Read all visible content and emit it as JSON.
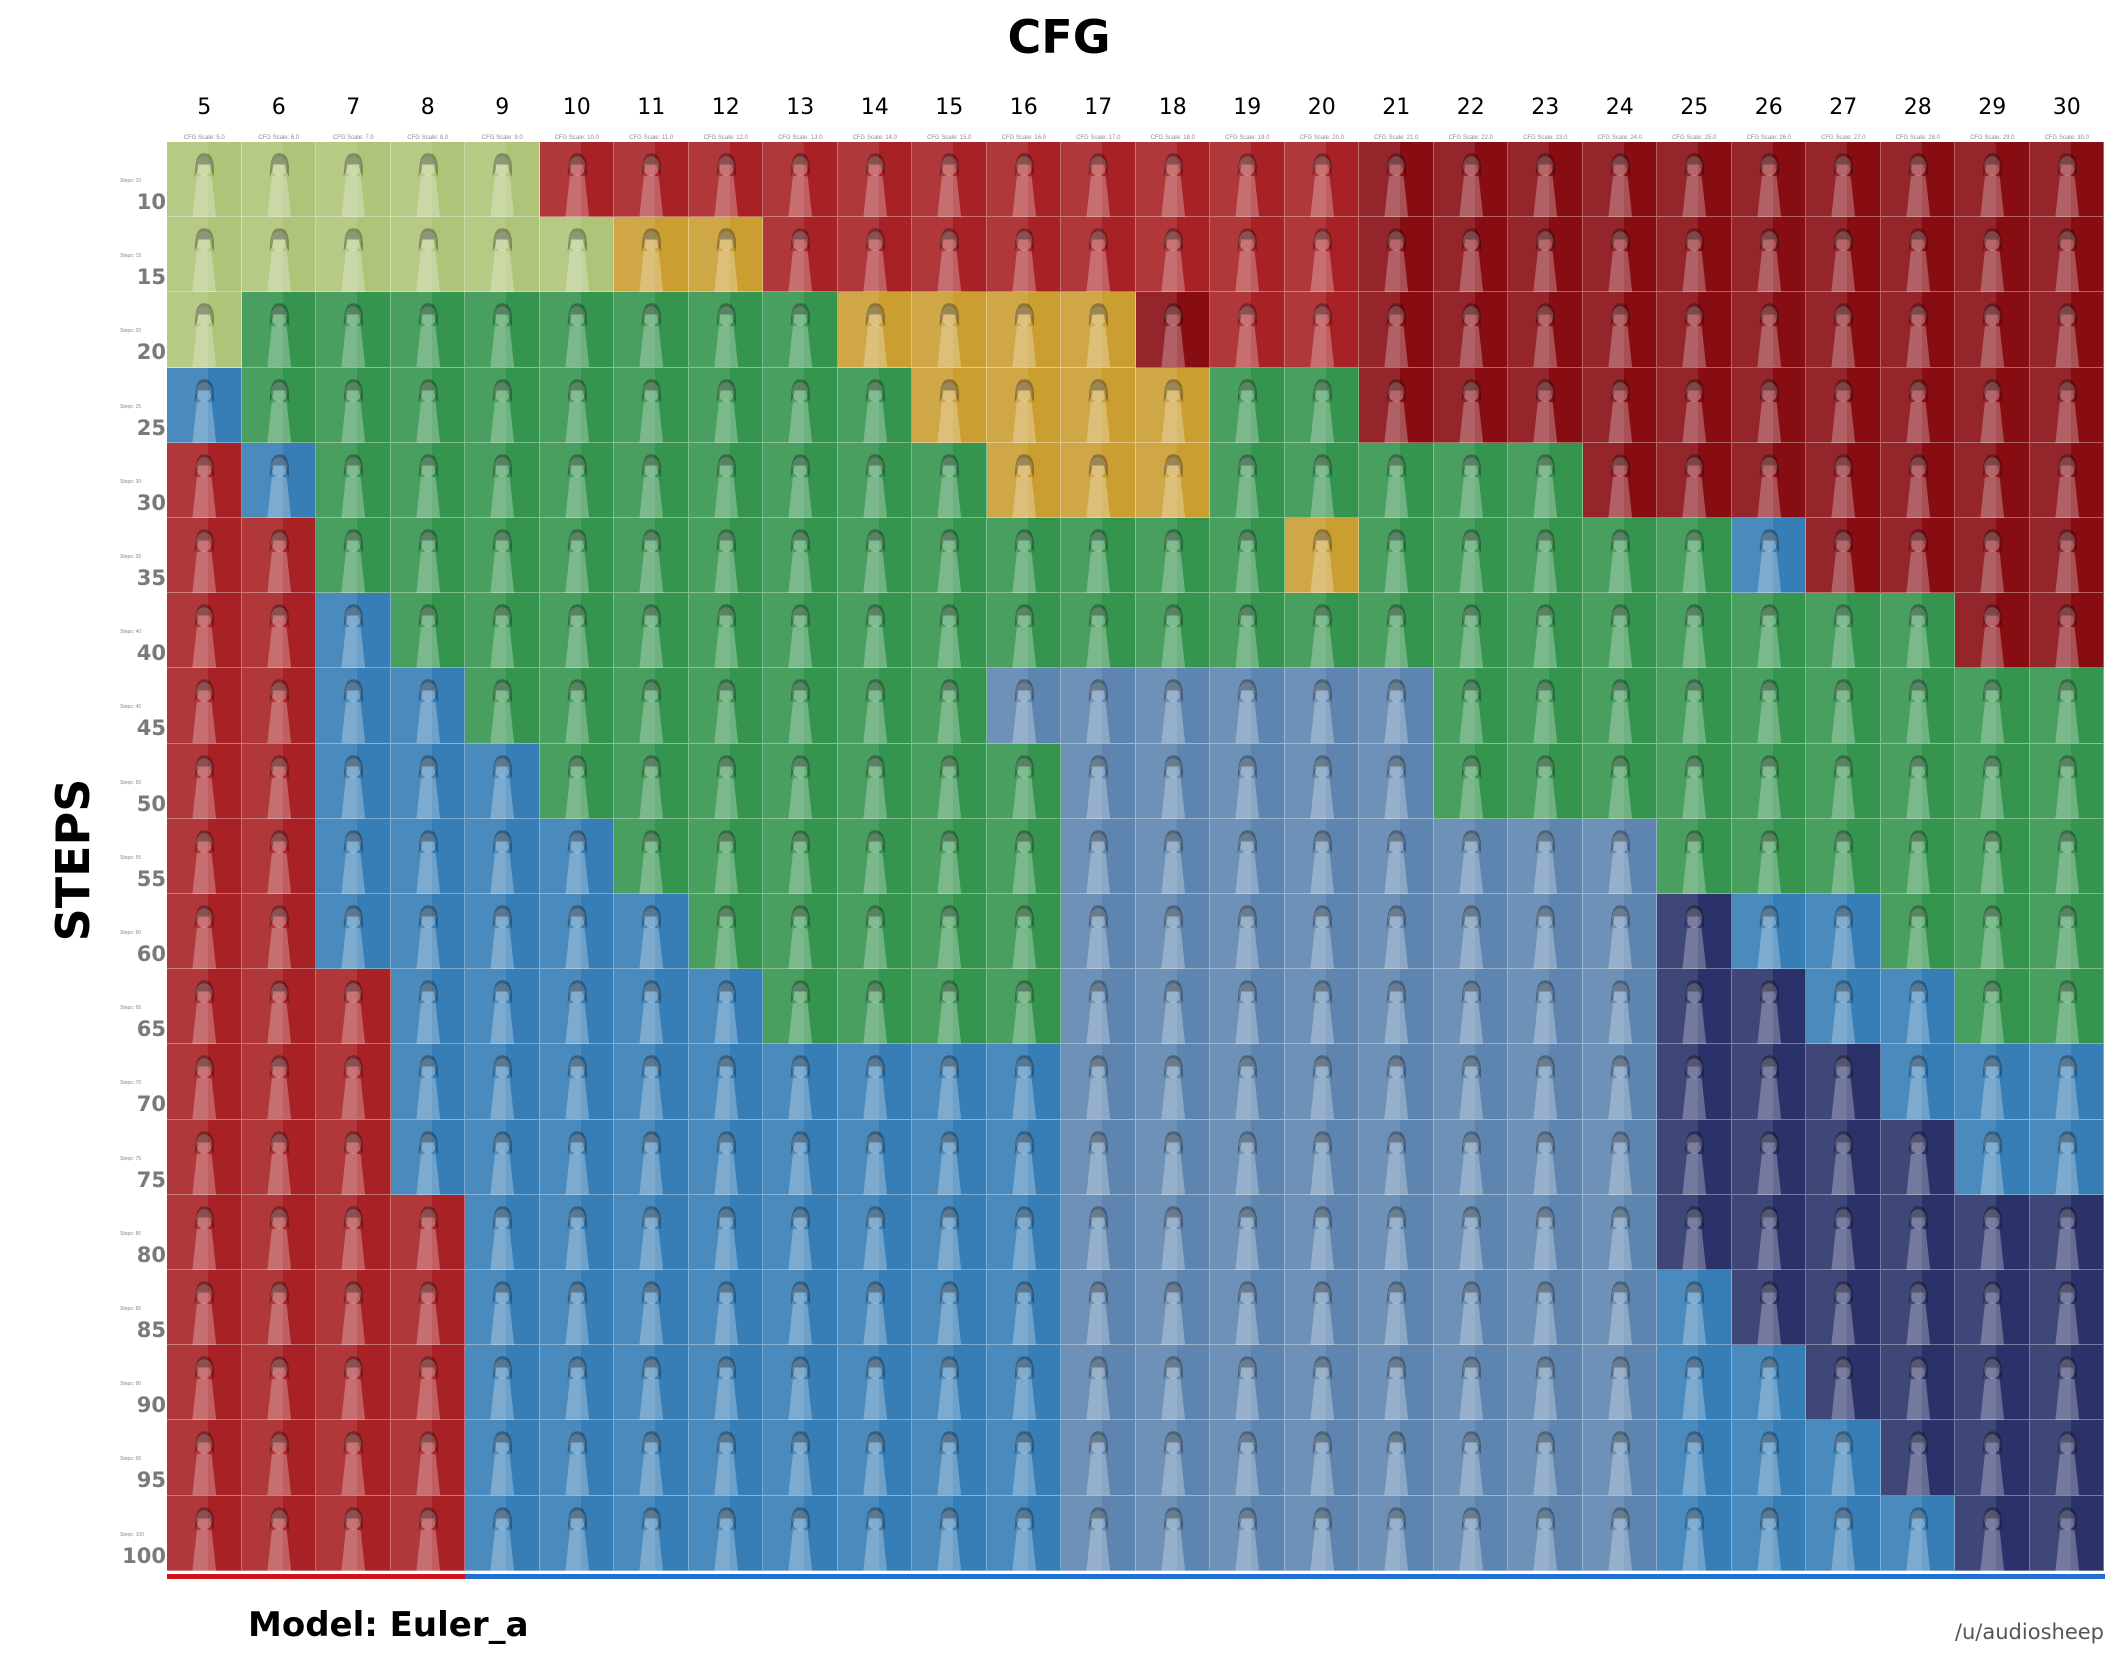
{
  "title": "CFG",
  "y_title": "STEPS",
  "model_label": "Model: Euler_a",
  "credit": "/u/audiosheep",
  "cfg_values": [
    5,
    6,
    7,
    8,
    9,
    10,
    11,
    12,
    13,
    14,
    15,
    16,
    17,
    18,
    19,
    20,
    21,
    22,
    23,
    24,
    25,
    26,
    27,
    28,
    29,
    30
  ],
  "cfg_sub_labels": [
    "CFG Scale: 5.0",
    "CFG Scale: 6.0",
    "CFG Scale: 7.0",
    "CFG Scale: 8.0",
    "CFG Scale: 9.0",
    "CFG Scale: 10.0",
    "CFG Scale: 11.0",
    "CFG Scale: 12.0",
    "CFG Scale: 13.0",
    "CFG Scale: 14.0",
    "CFG Scale: 15.0",
    "CFG Scale: 16.0",
    "CFG Scale: 17.0",
    "CFG Scale: 18.0",
    "CFG Scale: 19.0",
    "CFG Scale: 20.0",
    "CFG Scale: 21.0",
    "CFG Scale: 22.0",
    "CFG Scale: 23.0",
    "CFG Scale: 24.0",
    "CFG Scale: 25.0",
    "CFG Scale: 26.0",
    "CFG Scale: 27.0",
    "CFG Scale: 28.0",
    "CFG Scale: 29.0",
    "CFG Scale: 30.0"
  ],
  "step_values": [
    10,
    15,
    20,
    25,
    30,
    35,
    40,
    45,
    50,
    55,
    60,
    65,
    70,
    75,
    80,
    85,
    90,
    95,
    100
  ],
  "step_sub_labels": [
    "Steps: 10",
    "Steps: 15",
    "Steps: 20",
    "Steps: 25",
    "Steps: 30",
    "Steps: 35",
    "Steps: 40",
    "Steps: 45",
    "Steps: 50",
    "Steps: 55",
    "Steps: 60",
    "Steps: 65",
    "Steps: 70",
    "Steps: 75",
    "Steps: 80",
    "Steps: 85",
    "Steps: 90",
    "Steps: 95",
    "Steps: 100"
  ],
  "colors": {
    "O": "#c7e08a",
    "R": "#c0262a",
    "K": "#9b0f15",
    "Y": "#e8b43a",
    "G": "#3daa5b",
    "L": "#3f8fd0",
    "B": "#6b98c8",
    "N": "#303a78",
    "bar_red": "#d0141e",
    "bar_blue": "#2070d0"
  },
  "cell_categories": [
    "OOOOORRRRRRRRRRRKKKKKKKKKK",
    "OOOOOOYYRRRRRRRRKKKKKKKKKK",
    "OGGGGGGGGYYYYKRRKKKKKKKKKK",
    "LGGGGGGGGGYYYYGGKKKKKKKKKK",
    "RLGGGGGGGGGYYYGGGGGKKKKKKK",
    "RRGGGGGGGGGGGGGYGGGGGLKKKK",
    "RRLGGGGGGGGGGGGGGGGGGGGGKK",
    "RRLLGGGGGGGBBBBBBGGGGGGGGG",
    "RRLLLGGGGGGGBBBBBGGGGGGGGG",
    "RRLLLLGGGGGGBBBBBBBBGGGGGG",
    "RRLLLLLGGGGGBBBBBBBBNLLGGG",
    "RRRLLLLLGGGGBBBBBBBBNNLLGG",
    "RRRLLLLLLLLLBBBBBBBBNNNLLL",
    "RRRLLLLLLLLLBBBBBBBBNNNNLL",
    "RRRRLLLLLLLLBBBBBBBBNNNNNN",
    "RRRRLLLLLLLLBBBBBBBBLNNNNN",
    "RRRRLLLLLLLLBBBBBBBBLLNNNN",
    "RRRRLLLLLLLLBBBBBBBBLLLNNN",
    "RRRRLLLLLLLLBBBBBBBBLLLLNN"
  ]
}
